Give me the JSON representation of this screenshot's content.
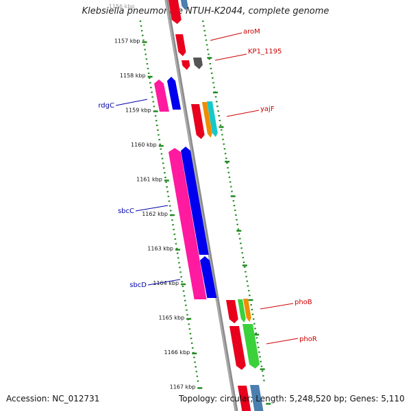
{
  "title": "Klebsiella pneumoniae NTUH-K2044, complete genome",
  "footer": {
    "accession": "Accession: NC_012731",
    "topology": "Topology: circular; Length: 5,248,520 bp; Genes: 5,110"
  },
  "colors": {
    "backbone": "#8c8c8c",
    "ruler": "#1f8a1f",
    "label_forward": "#cc0000",
    "label_reverse": "#0000aa"
  },
  "ticks": [
    "1156 kbp",
    "1157 kbp",
    "1158 kbp",
    "1159 kbp",
    "1160 kbp",
    "1161 kbp",
    "1162 kbp",
    "1163 kbp",
    "1164 kbp",
    "1165 kbp",
    "1166 kbp",
    "1167 kbp"
  ],
  "genes": [
    {
      "label": "aroM",
      "strand": "forward"
    },
    {
      "label": "KP1_1195",
      "strand": "forward"
    },
    {
      "label": "yajF",
      "strand": "forward"
    },
    {
      "label": "rdgC",
      "strand": "reverse"
    },
    {
      "label": "sbcC",
      "strand": "reverse"
    },
    {
      "label": "sbcD",
      "strand": "reverse"
    },
    {
      "label": "phoB",
      "strand": "forward"
    },
    {
      "label": "phoR",
      "strand": "forward"
    }
  ]
}
